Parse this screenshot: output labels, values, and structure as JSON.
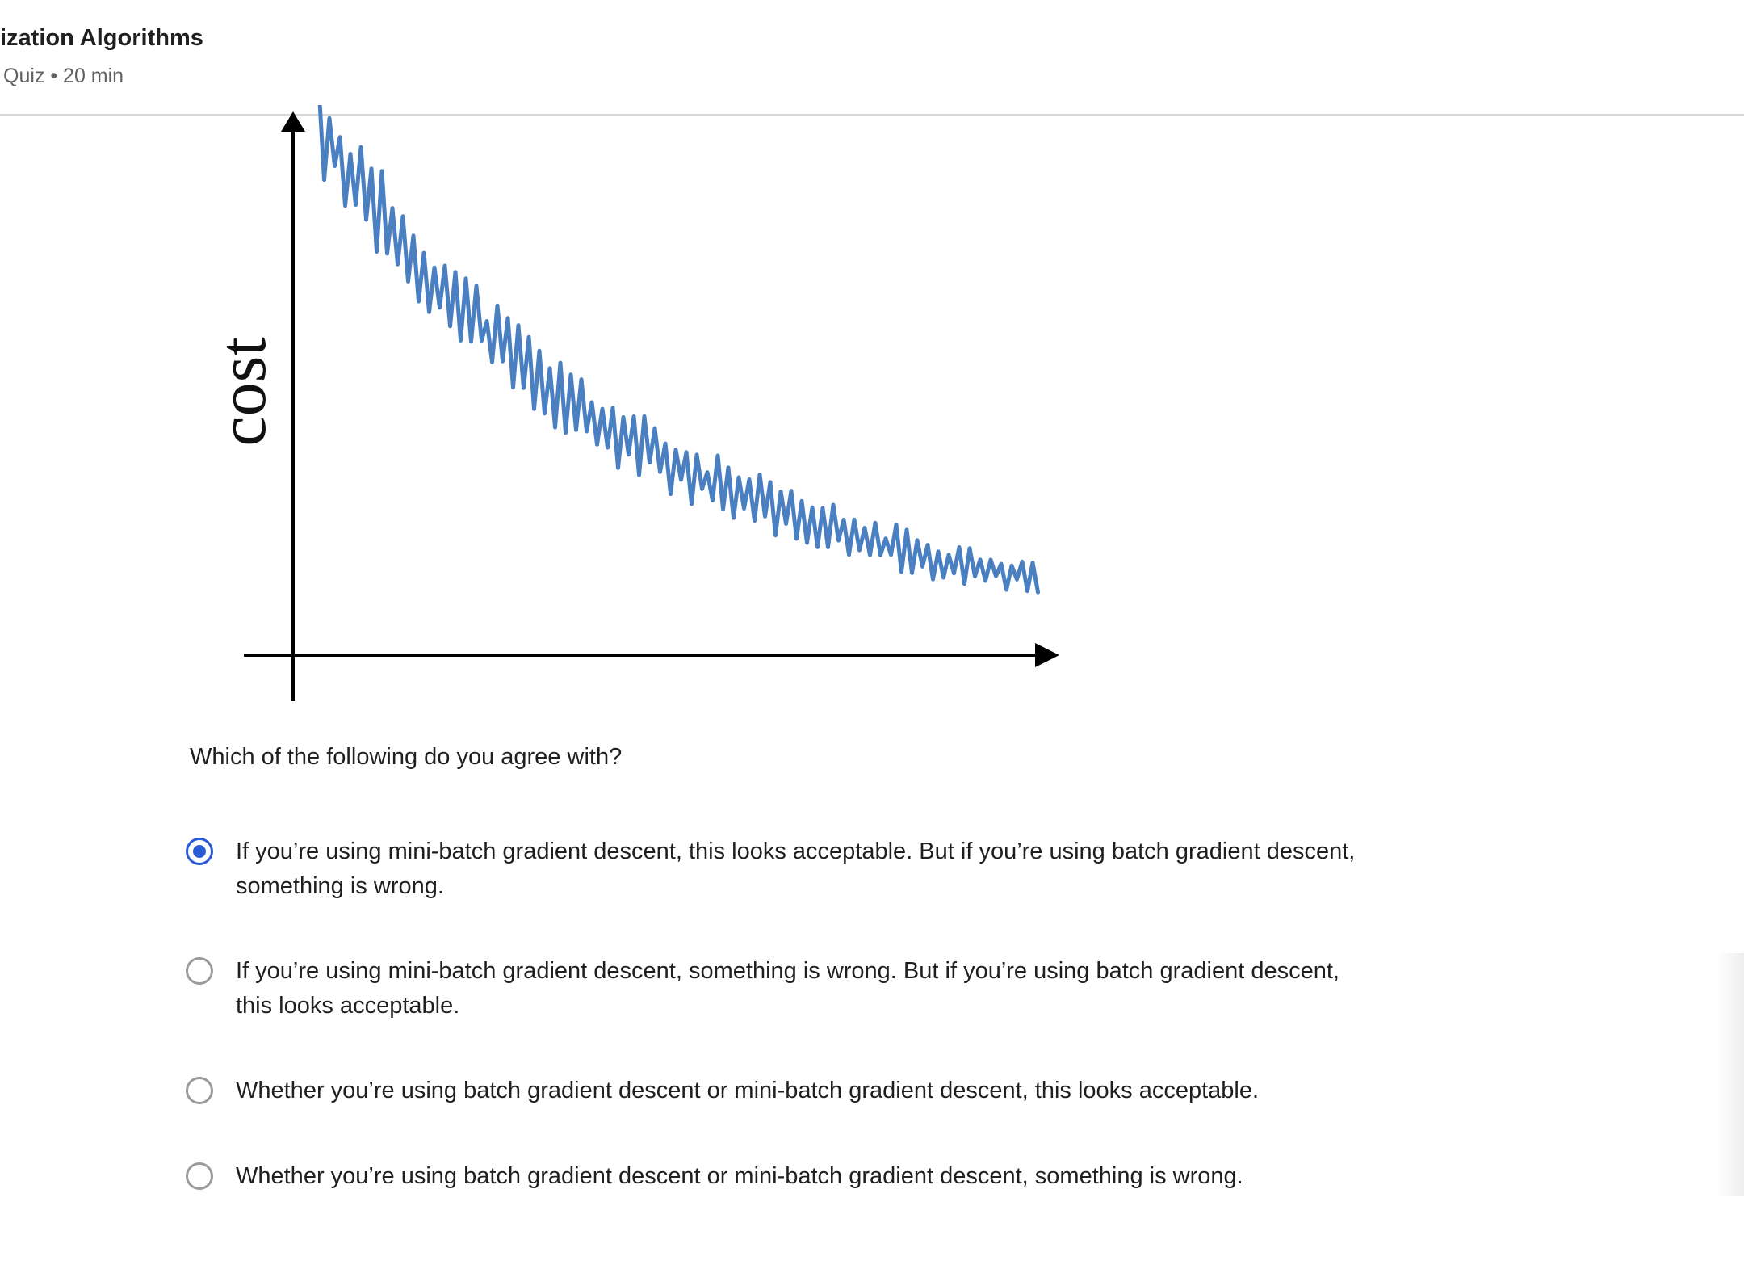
{
  "header": {
    "title": "ization Algorithms",
    "subtitle": "Quiz • 20 min"
  },
  "figure": {
    "ylabel": "cost",
    "line_color": "#4a7fc1"
  },
  "question": {
    "prompt": "Which of the following do you agree with?",
    "selected_index": 0,
    "options": [
      {
        "line1": "If you’re using mini-batch gradient descent, this looks acceptable. But if you’re using batch gradient descent,",
        "line2": "something is wrong."
      },
      {
        "line1": "If you’re using mini-batch gradient descent, something is wrong. But if you’re using batch gradient descent,",
        "line2": "this looks acceptable."
      },
      {
        "line1": "Whether you’re using batch gradient descent or mini-batch gradient descent, this looks acceptable.",
        "line2": ""
      },
      {
        "line1": "Whether you’re using batch gradient descent or mini-batch gradient descent, something is wrong.",
        "line2": ""
      }
    ]
  },
  "colors": {
    "accent": "#2a5bd7",
    "text": "#1f1f1f",
    "muted": "#636363"
  }
}
